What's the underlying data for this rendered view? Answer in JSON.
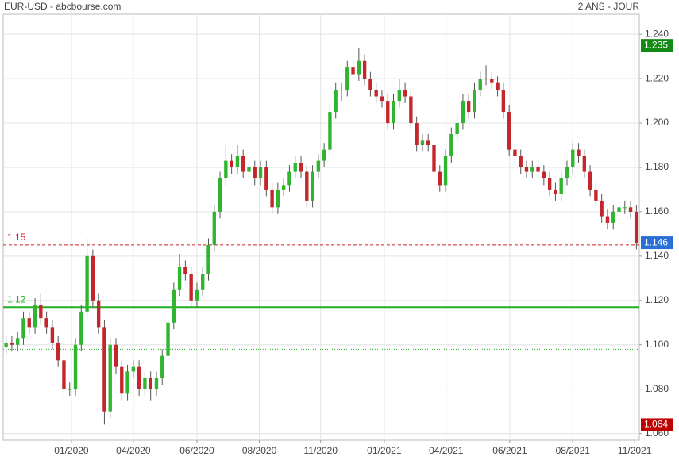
{
  "chart_data": {
    "type": "candlestick",
    "title": "EUR-USD - abcbourse.com",
    "subtitle": "2 ANS - JOUR",
    "up_color": "#2fb52f",
    "down_color": "#c4262c",
    "grid": true,
    "xlim": [
      -0.5,
      109.5
    ],
    "xticks": [
      {
        "value": 11.3,
        "label": "01/2020"
      },
      {
        "value": 22,
        "label": "04/2020"
      },
      {
        "value": 33,
        "label": "06/2020"
      },
      {
        "value": 43.8,
        "label": "08/2020"
      },
      {
        "value": 54.4,
        "label": "11/2020"
      },
      {
        "value": 65.4,
        "label": "01/2021"
      },
      {
        "value": 76.1,
        "label": "04/2021"
      },
      {
        "value": 87.1,
        "label": "06/2021"
      },
      {
        "value": 98,
        "label": "08/2021"
      },
      {
        "value": 108.7,
        "label": "11/2021"
      }
    ],
    "ylim": [
      1.057,
      1.249
    ],
    "yticks": [
      {
        "value": 1.06,
        "label": "1.060"
      },
      {
        "value": 1.08,
        "label": "1.080"
      },
      {
        "value": 1.1,
        "label": "1.100"
      },
      {
        "value": 1.12,
        "label": "1.120"
      },
      {
        "value": 1.14,
        "label": "1.140"
      },
      {
        "value": 1.16,
        "label": "1.160"
      },
      {
        "value": 1.18,
        "label": "1.180"
      },
      {
        "value": 1.2,
        "label": "1.200"
      },
      {
        "value": 1.22,
        "label": "1.220"
      },
      {
        "value": 1.24,
        "label": "1.240"
      }
    ],
    "open": [
      1.099,
      1.101,
      1.1,
      1.103,
      1.112,
      1.108,
      1.118,
      1.112,
      1.108,
      1.101,
      1.093,
      1.08,
      1.08,
      1.1,
      1.115,
      1.14,
      1.12,
      1.108,
      1.07,
      1.1,
      1.09,
      1.078,
      1.088,
      1.09,
      1.08,
      1.085,
      1.08,
      1.085,
      1.095,
      1.11,
      1.125,
      1.135,
      1.132,
      1.12,
      1.125,
      1.132,
      1.145,
      1.16,
      1.175,
      1.183,
      1.18,
      1.185,
      1.178,
      1.18,
      1.175,
      1.18,
      1.17,
      1.162,
      1.17,
      1.172,
      1.178,
      1.182,
      1.178,
      1.165,
      1.178,
      1.183,
      1.188,
      1.205,
      1.215,
      1.215,
      1.225,
      1.222,
      1.228,
      1.22,
      1.215,
      1.212,
      1.21,
      1.2,
      1.21,
      1.215,
      1.212,
      1.2,
      1.19,
      1.192,
      1.19,
      1.178,
      1.172,
      1.185,
      1.195,
      1.2,
      1.21,
      1.205,
      1.215,
      1.22,
      1.22,
      1.218,
      1.215,
      1.205,
      1.188,
      1.185,
      1.18,
      1.178,
      1.18,
      1.178,
      1.175,
      1.17,
      1.168,
      1.175,
      1.18,
      1.188,
      1.185,
      1.178,
      1.17,
      1.165,
      1.158,
      1.155,
      1.16,
      1.162,
      1.162,
      1.16
    ],
    "high": [
      1.104,
      1.104,
      1.106,
      1.115,
      1.115,
      1.121,
      1.123,
      1.115,
      1.111,
      1.104,
      1.096,
      1.083,
      1.103,
      1.118,
      1.148,
      1.143,
      1.123,
      1.111,
      1.103,
      1.103,
      1.093,
      1.091,
      1.093,
      1.093,
      1.088,
      1.088,
      1.088,
      1.098,
      1.113,
      1.128,
      1.141,
      1.138,
      1.135,
      1.128,
      1.135,
      1.148,
      1.163,
      1.178,
      1.19,
      1.186,
      1.19,
      1.188,
      1.183,
      1.183,
      1.183,
      1.183,
      1.173,
      1.173,
      1.175,
      1.181,
      1.185,
      1.185,
      1.181,
      1.181,
      1.186,
      1.191,
      1.208,
      1.218,
      1.218,
      1.228,
      1.228,
      1.234,
      1.231,
      1.223,
      1.218,
      1.215,
      1.213,
      1.213,
      1.22,
      1.218,
      1.215,
      1.203,
      1.195,
      1.195,
      1.193,
      1.181,
      1.188,
      1.198,
      1.203,
      1.213,
      1.213,
      1.218,
      1.223,
      1.226,
      1.223,
      1.221,
      1.218,
      1.208,
      1.191,
      1.188,
      1.183,
      1.183,
      1.183,
      1.181,
      1.178,
      1.173,
      1.178,
      1.183,
      1.191,
      1.191,
      1.188,
      1.181,
      1.173,
      1.168,
      1.161,
      1.163,
      1.169,
      1.165,
      1.165,
      1.163
    ],
    "low": [
      1.096,
      1.097,
      1.097,
      1.1,
      1.105,
      1.105,
      1.109,
      1.105,
      1.098,
      1.09,
      1.077,
      1.077,
      1.077,
      1.097,
      1.112,
      1.117,
      1.105,
      1.064,
      1.067,
      1.087,
      1.075,
      1.075,
      1.085,
      1.077,
      1.077,
      1.075,
      1.077,
      1.082,
      1.092,
      1.107,
      1.122,
      1.129,
      1.117,
      1.117,
      1.122,
      1.129,
      1.142,
      1.157,
      1.172,
      1.177,
      1.177,
      1.175,
      1.175,
      1.172,
      1.172,
      1.167,
      1.159,
      1.159,
      1.167,
      1.169,
      1.175,
      1.175,
      1.162,
      1.162,
      1.175,
      1.18,
      1.185,
      1.202,
      1.21,
      1.212,
      1.219,
      1.219,
      1.217,
      1.212,
      1.209,
      1.207,
      1.197,
      1.197,
      1.207,
      1.209,
      1.197,
      1.187,
      1.187,
      1.187,
      1.175,
      1.169,
      1.169,
      1.182,
      1.192,
      1.197,
      1.202,
      1.202,
      1.212,
      1.217,
      1.215,
      1.212,
      1.202,
      1.185,
      1.182,
      1.177,
      1.175,
      1.175,
      1.175,
      1.172,
      1.167,
      1.165,
      1.165,
      1.172,
      1.177,
      1.182,
      1.175,
      1.167,
      1.162,
      1.155,
      1.152,
      1.152,
      1.157,
      1.159,
      1.157,
      1.143
    ],
    "close": [
      1.101,
      1.1,
      1.103,
      1.112,
      1.108,
      1.118,
      1.112,
      1.108,
      1.101,
      1.093,
      1.08,
      1.08,
      1.1,
      1.115,
      1.14,
      1.12,
      1.108,
      1.07,
      1.1,
      1.09,
      1.078,
      1.088,
      1.09,
      1.08,
      1.085,
      1.08,
      1.085,
      1.095,
      1.11,
      1.125,
      1.135,
      1.132,
      1.12,
      1.125,
      1.132,
      1.145,
      1.16,
      1.175,
      1.183,
      1.18,
      1.185,
      1.178,
      1.18,
      1.175,
      1.18,
      1.17,
      1.162,
      1.17,
      1.172,
      1.178,
      1.182,
      1.178,
      1.165,
      1.178,
      1.183,
      1.188,
      1.205,
      1.215,
      1.215,
      1.225,
      1.222,
      1.228,
      1.22,
      1.215,
      1.212,
      1.21,
      1.2,
      1.21,
      1.215,
      1.212,
      1.2,
      1.19,
      1.192,
      1.19,
      1.178,
      1.172,
      1.185,
      1.195,
      1.2,
      1.21,
      1.205,
      1.215,
      1.22,
      1.22,
      1.218,
      1.215,
      1.205,
      1.188,
      1.185,
      1.18,
      1.178,
      1.18,
      1.178,
      1.175,
      1.17,
      1.168,
      1.175,
      1.18,
      1.188,
      1.185,
      1.178,
      1.17,
      1.165,
      1.158,
      1.155,
      1.16,
      1.162,
      1.162,
      1.16,
      1.146
    ],
    "lines": [
      {
        "value": 1.145,
        "label": "1.15",
        "color": "#d0202a",
        "style": "dashed"
      },
      {
        "value": 1.117,
        "label": "1.12",
        "color": "#22b022",
        "style": "solid"
      },
      {
        "value": 1.098,
        "color": "#22b022",
        "style": "dotted"
      }
    ],
    "price_labels": [
      {
        "value": 1.235,
        "color": "#138a13"
      },
      {
        "value": 1.146,
        "color": "#2a6fd6"
      },
      {
        "value": 1.064,
        "color": "#c00000"
      }
    ]
  }
}
